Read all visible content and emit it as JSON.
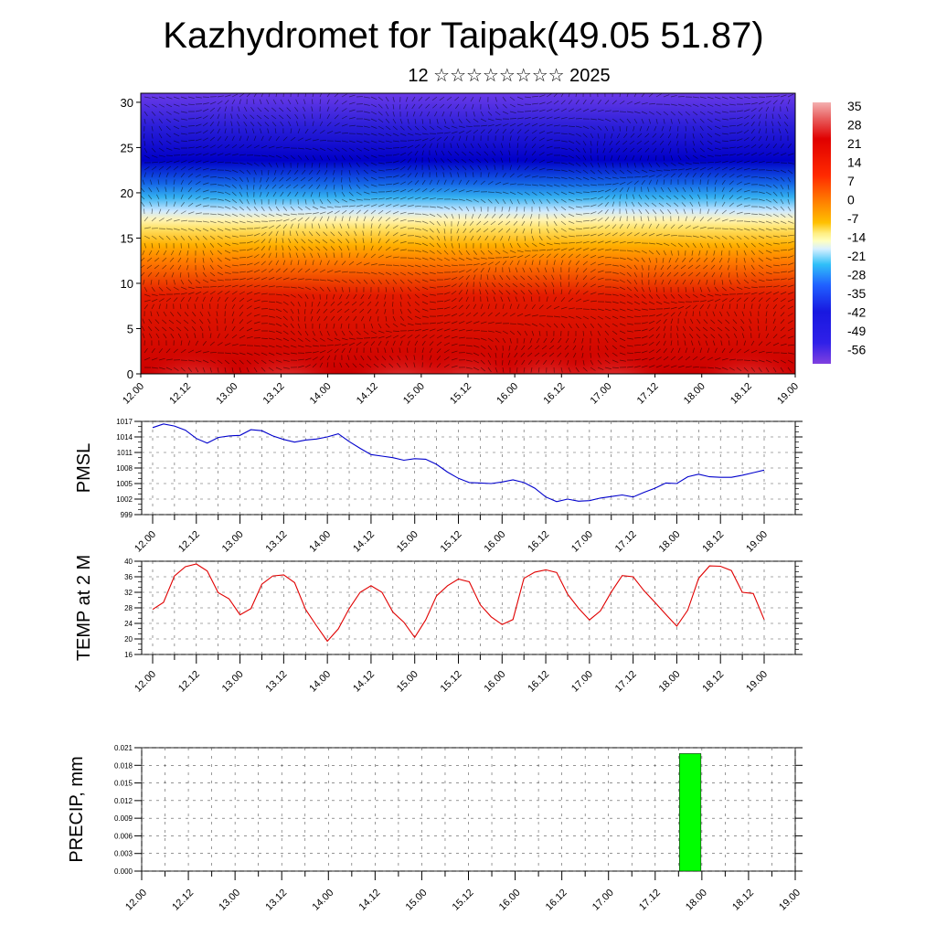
{
  "title": "Kazhydromet for Taipak(49.05 51.87)",
  "subtitle": "12 ☆☆☆☆☆☆☆☆ 2025",
  "time_ticks": [
    "12.00",
    "12.12",
    "13.00",
    "13.12",
    "14.00",
    "14.12",
    "15.00",
    "15.12",
    "16.00",
    "16.12",
    "17.00",
    "17.12",
    "18.00",
    "18.12",
    "19.00"
  ],
  "colors": {
    "pmsl_line": "#0000cc",
    "temp_line": "#e00000",
    "precip_bar": "#00ff00"
  },
  "chart_data": [
    {
      "type": "heatmap",
      "name": "cross-section",
      "x_ticks": [
        "12.00",
        "12.12",
        "13.00",
        "13.12",
        "14.00",
        "14.12",
        "15.00",
        "15.12",
        "16.00",
        "16.12",
        "17.00",
        "17.12",
        "18.00",
        "18.12",
        "19.00"
      ],
      "y_ticks": [
        "0",
        "5",
        "10",
        "15",
        "20",
        "25",
        "30"
      ],
      "ylim": [
        0,
        31
      ],
      "colorbar_labels": [
        "35",
        "28",
        "21",
        "14",
        "7",
        "0",
        "-7",
        "-14",
        "-21",
        "-28",
        "-35",
        "-42",
        "-49",
        "-56"
      ]
    },
    {
      "type": "line",
      "ylabel": "PMSL",
      "y_ticks": [
        "1017",
        "1014",
        "1011",
        "1008",
        "1005",
        "1002",
        "999"
      ],
      "ylim": [
        999,
        1017
      ],
      "x_ticks": [
        "12.00",
        "12.12",
        "13.00",
        "13.12",
        "14.00",
        "14.12",
        "15.00",
        "15.12",
        "16.00",
        "16.12",
        "17.00",
        "17.12",
        "18.00",
        "18.12",
        "19.00"
      ],
      "hours": [
        0,
        3,
        6,
        9,
        12,
        15,
        18,
        21,
        24,
        27,
        30,
        33,
        36,
        39,
        42,
        45,
        48,
        51,
        54,
        57,
        60,
        63,
        66,
        69,
        72,
        75,
        78,
        81,
        84,
        87,
        90,
        93,
        96,
        99,
        102,
        105,
        108,
        111,
        114,
        117,
        120,
        123,
        126,
        129,
        132,
        135,
        138,
        141,
        144,
        147,
        150,
        153,
        156,
        159,
        162,
        165,
        168
      ],
      "values": [
        1015.8,
        1016.5,
        1016.1,
        1015.3,
        1013.7,
        1012.8,
        1013.9,
        1014.2,
        1014.3,
        1015.4,
        1015.2,
        1014.2,
        1013.5,
        1013.0,
        1013.4,
        1013.6,
        1014.0,
        1014.6,
        1013.1,
        1011.8,
        1010.6,
        1010.3,
        1010.0,
        1009.5,
        1009.8,
        1009.7,
        1008.7,
        1007.2,
        1006.0,
        1005.2,
        1005.1,
        1005.0,
        1005.3,
        1005.7,
        1005.2,
        1004.1,
        1002.4,
        1001.5,
        1002.0,
        1001.6,
        1001.7,
        1002.2,
        1002.5,
        1002.8,
        1002.4,
        1003.3,
        1004.1,
        1005.1,
        1005.0,
        1006.3,
        1006.8,
        1006.3,
        1006.2,
        1006.2,
        1006.6,
        1007.1,
        1007.6
      ]
    },
    {
      "type": "line",
      "ylabel": "TEMP at 2 M",
      "y_ticks": [
        "40",
        "36",
        "32",
        "28",
        "24",
        "20",
        "16"
      ],
      "ylim": [
        16,
        40
      ],
      "x_ticks": [
        "12.00",
        "12.12",
        "13.00",
        "13.12",
        "14.00",
        "14.12",
        "15.00",
        "15.12",
        "16.00",
        "16.12",
        "17.00",
        "17.12",
        "18.00",
        "18.12",
        "19.00"
      ],
      "hours": [
        0,
        3,
        6,
        9,
        12,
        15,
        18,
        21,
        24,
        27,
        30,
        33,
        36,
        39,
        42,
        45,
        48,
        51,
        54,
        57,
        60,
        63,
        66,
        69,
        72,
        75,
        78,
        81,
        84,
        87,
        90,
        93,
        96,
        99,
        102,
        105,
        108,
        111,
        114,
        117,
        120,
        123,
        126,
        129,
        132,
        135,
        138,
        141,
        144,
        147,
        150,
        153,
        156,
        159,
        162,
        165,
        168
      ],
      "values": [
        27.6,
        29.4,
        36.2,
        38.6,
        39.3,
        37.5,
        31.9,
        30.3,
        26.2,
        27.8,
        34.1,
        36.2,
        36.5,
        34.5,
        27.6,
        23.4,
        19.4,
        22.6,
        27.8,
        32.0,
        33.7,
        32.0,
        26.9,
        24.3,
        20.4,
        24.9,
        31.1,
        33.7,
        35.4,
        34.7,
        28.8,
        25.7,
        23.7,
        25.0,
        35.6,
        37.2,
        37.8,
        37.1,
        31.5,
        27.9,
        24.9,
        27.2,
        32.1,
        36.3,
        36.0,
        32.4,
        29.4,
        26.3,
        23.3,
        27.4,
        35.6,
        38.8,
        38.7,
        37.6,
        32.0,
        31.7,
        25.0
      ]
    },
    {
      "type": "bar",
      "ylabel": "PRECIP, mm",
      "y_ticks": [
        "0.021",
        "0.018",
        "0.015",
        "0.012",
        "0.009",
        "0.006",
        "0.003",
        "0.000"
      ],
      "ylim": [
        0,
        0.021
      ],
      "x_ticks": [
        "12.00",
        "12.12",
        "13.00",
        "13.12",
        "14.00",
        "14.12",
        "15.00",
        "15.12",
        "16.00",
        "16.12",
        "17.00",
        "17.12",
        "18.00",
        "18.12",
        "19.00"
      ],
      "bars": [
        {
          "start_hour": 138,
          "end_hour": 144,
          "value": 0.02
        }
      ]
    }
  ]
}
